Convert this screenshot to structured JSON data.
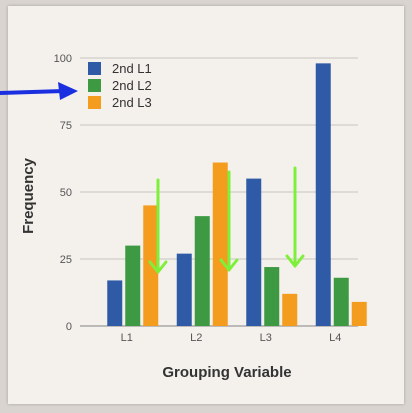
{
  "chart_data": {
    "type": "bar",
    "xlabel": "Grouping Variable",
    "ylabel": "Frequency",
    "categories": [
      "L1",
      "L2",
      "L3",
      "L4"
    ],
    "ylim": [
      0,
      100
    ],
    "yticks": [
      0,
      25,
      50,
      75,
      100
    ],
    "grid": true,
    "legend_position": "top-left",
    "series": [
      {
        "name": "2nd L1",
        "color": "#2e5aa6",
        "values": [
          17,
          27,
          55,
          98
        ]
      },
      {
        "name": "2nd L2",
        "color": "#3d9a42",
        "values": [
          30,
          41,
          22,
          18
        ]
      },
      {
        "name": "2nd L3",
        "color": "#f39c1e",
        "values": [
          45,
          61,
          12,
          9
        ]
      }
    ]
  },
  "annotations": {
    "pointer_arrow_color": "#1a2fe0",
    "down_arrow_color": "#7ef03a",
    "down_arrow_count": 3
  }
}
